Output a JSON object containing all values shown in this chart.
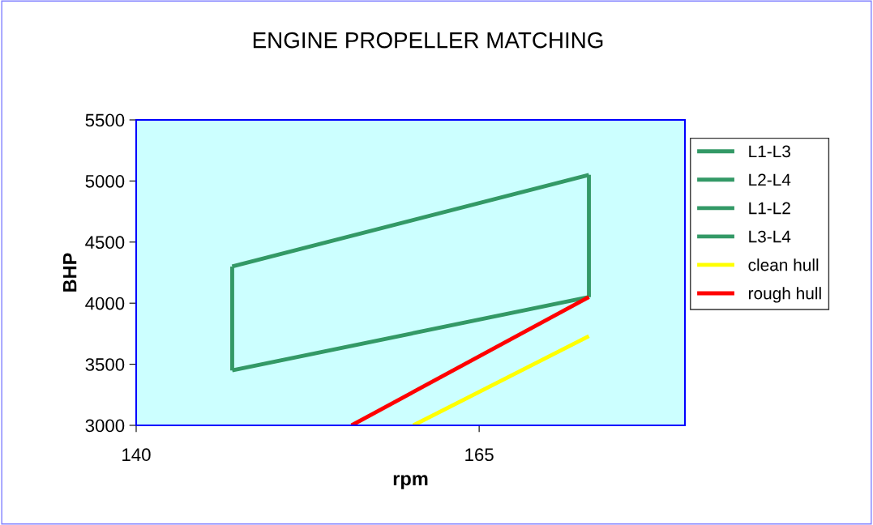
{
  "chart_data": {
    "type": "line",
    "title": "ENGINE PROPELLER MATCHING",
    "xlabel": "rpm",
    "ylabel": "BHP",
    "xlim": [
      140,
      180
    ],
    "xticks": [
      140,
      165
    ],
    "ylim": [
      3000,
      5500
    ],
    "yticks": [
      3000,
      3500,
      4000,
      4500,
      5000,
      5500
    ],
    "grid": false,
    "legend": "right",
    "marker": "none",
    "line_style": "solid",
    "series": [
      {
        "name": "L1-L3",
        "color": "#339966",
        "x": [
          147,
          173
        ],
        "values": [
          4300,
          5050
        ]
      },
      {
        "name": "L2-L4",
        "color": "#339966",
        "x": [
          147,
          173
        ],
        "values": [
          3450,
          4050
        ]
      },
      {
        "name": "L1-L2",
        "color": "#339966",
        "x": [
          147,
          147
        ],
        "values": [
          4300,
          3450
        ]
      },
      {
        "name": "L3-L4",
        "color": "#339966",
        "x": [
          173,
          173
        ],
        "values": [
          5050,
          4050
        ]
      },
      {
        "name": "clean hull",
        "color": "#ffff00",
        "x": [
          160.2,
          173
        ],
        "values": [
          3000,
          3730
        ]
      },
      {
        "name": "rough hull",
        "color": "#ff0000",
        "x": [
          155.7,
          173
        ],
        "values": [
          3000,
          4050
        ]
      }
    ]
  }
}
